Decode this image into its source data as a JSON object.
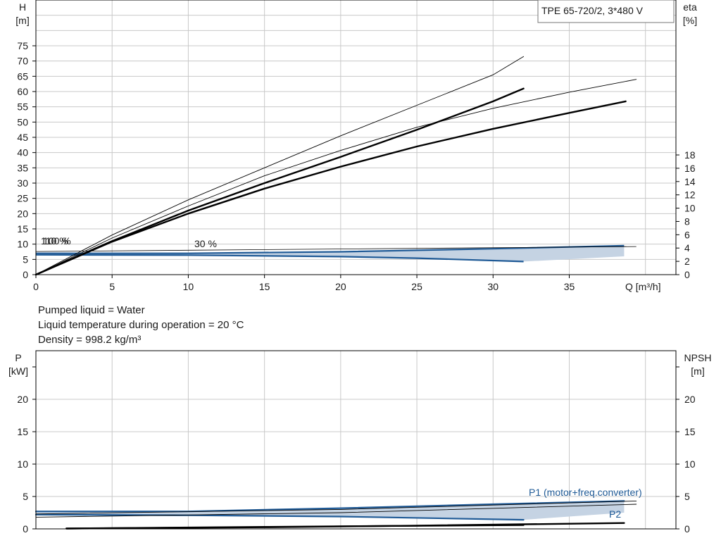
{
  "title_box": "TPE 65-720/2, 3*480 V",
  "info": {
    "line1": "Pumped liquid = Water",
    "line2": "Liquid temperature during operation = 20 °C",
    "line3": "Density = 998.2 kg/m³"
  },
  "colors": {
    "curve": "#000000",
    "blue": "#1f5a96",
    "fill": "#c5d3e3",
    "grid": "#c8c8c8"
  },
  "chart_data": [
    {
      "type": "line",
      "name": "head",
      "xlabel": "Q [m³/h]",
      "ylabel": [
        "H",
        "[m]"
      ],
      "y2label": [
        "eta",
        "[%]"
      ],
      "xlim": [
        0,
        42
      ],
      "ylim": [
        0,
        90
      ],
      "y2lim": [
        0,
        41.3
      ],
      "xticks": [
        0,
        5,
        10,
        15,
        20,
        25,
        30,
        35
      ],
      "yticks": [
        0,
        5,
        10,
        15,
        20,
        25,
        30,
        35,
        40,
        45,
        50,
        55,
        60,
        65,
        70,
        75
      ],
      "y2ticks": [
        0,
        2,
        4,
        6,
        8,
        10,
        12,
        14,
        16,
        18
      ],
      "speed_labels": [
        {
          "text": "100 %",
          "x": 0.4,
          "y": 11
        },
        {
          "text": "110 %",
          "x": 0.4,
          "y": 11
        },
        {
          "text": "30 %",
          "x": 10.5,
          "y": 10
        }
      ],
      "series": [
        {
          "style": "thin",
          "x": [
            0,
            5,
            10,
            15,
            20,
            25,
            30,
            32
          ],
          "y": [
            0,
            13,
            24.5,
            35,
            45.5,
            55.5,
            65.5,
            71.5
          ]
        },
        {
          "style": "thick",
          "x": [
            0,
            5,
            10,
            15,
            20,
            25,
            30,
            32
          ],
          "y": [
            0,
            11,
            21,
            30,
            38.6,
            47.5,
            56.8,
            61
          ]
        },
        {
          "style": "thin",
          "x": [
            0,
            5,
            10,
            15,
            20,
            25,
            30,
            35,
            39.4
          ],
          "y": [
            0,
            12,
            22.5,
            32.4,
            40.7,
            48.3,
            54.5,
            59.8,
            64
          ]
        },
        {
          "style": "thick",
          "x": [
            0,
            5,
            10,
            15,
            20,
            25,
            30,
            35,
            38.7
          ],
          "y": [
            0,
            10.8,
            20,
            28.2,
            35.4,
            42,
            47.8,
            53,
            56.8
          ]
        }
      ],
      "efficiency_band": {
        "upper": {
          "x": [
            0,
            10,
            20,
            30,
            38.6
          ],
          "y": [
            7,
            7,
            7.5,
            8.5,
            9.5
          ]
        },
        "lower": {
          "x": [
            0,
            10,
            20,
            25,
            32
          ],
          "y": [
            6.5,
            6.4,
            5.9,
            5.4,
            4.3
          ]
        },
        "right_edge": {
          "x": [
            38.6,
            38.6
          ],
          "y": [
            9.5,
            6
          ]
        }
      }
    },
    {
      "type": "line",
      "name": "power",
      "ylabel": [
        "P",
        "[kW]"
      ],
      "y2label": [
        "NPSH",
        "[m]"
      ],
      "xlim": [
        0,
        42
      ],
      "ylim": [
        0,
        27.5
      ],
      "yticks": [
        0,
        5,
        10,
        15,
        20
      ],
      "y2ticks": [
        0,
        5,
        10,
        15,
        20
      ],
      "annotations": [
        "P1 (motor+freq.converter)",
        "P2"
      ],
      "series": [
        {
          "name": "P1 (motor+freq.converter)",
          "style": "blue",
          "x": [
            0,
            10,
            20,
            30,
            38.6
          ],
          "y": [
            2.7,
            2.7,
            3.2,
            3.8,
            4.3
          ]
        },
        {
          "name": "P2",
          "style": "blue",
          "x": [
            0,
            10,
            20,
            32
          ],
          "y": [
            2.2,
            2.1,
            1.9,
            1.4
          ]
        },
        {
          "style": "thin",
          "x": [
            0,
            20,
            39.4
          ],
          "y": [
            2.3,
            3,
            4.3
          ]
        },
        {
          "style": "thin",
          "x": [
            0,
            20,
            39.4
          ],
          "y": [
            1.8,
            2.5,
            3.8
          ]
        },
        {
          "style": "thick",
          "x": [
            2,
            15,
            25,
            38.6
          ],
          "y": [
            0.05,
            0.25,
            0.5,
            0.9
          ]
        },
        {
          "style": "thick",
          "x": [
            2,
            15,
            32
          ],
          "y": [
            0.05,
            0.3,
            0.6
          ]
        }
      ]
    }
  ]
}
